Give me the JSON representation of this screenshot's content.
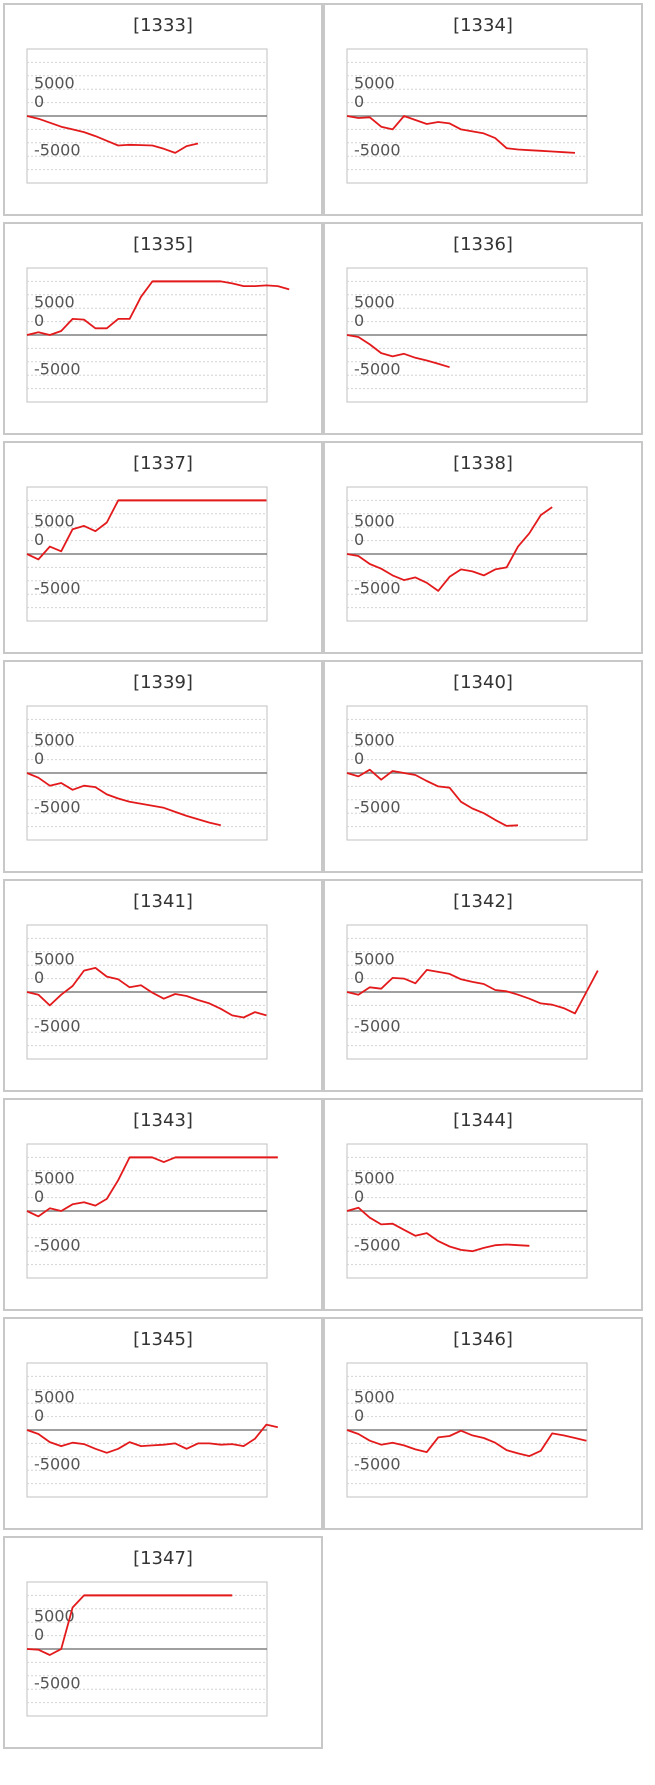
{
  "chart_data": [
    {
      "type": "line",
      "title": "[1333]",
      "yticks": [
        "5000",
        "0",
        "-5000"
      ],
      "ylim": [
        -10000,
        10000
      ],
      "clip": 8000,
      "line_color": "#e31a1c",
      "values": [
        0,
        -400,
        -1000,
        -1600,
        -2000,
        -2400,
        -3000,
        -3700,
        -4400,
        -4300,
        -4350,
        -4400,
        -4900,
        -5500,
        -4500,
        -4100
      ]
    },
    {
      "type": "line",
      "title": "[1334]",
      "yticks": [
        "5000",
        "0",
        "-5000"
      ],
      "ylim": [
        -10000,
        10000
      ],
      "clip": 8000,
      "line_color": "#e31a1c",
      "values": [
        0,
        -300,
        -200,
        -1600,
        -2000,
        0,
        -600,
        -1200,
        -900,
        -1100,
        -2000,
        -2300,
        -2600,
        -3300,
        -4800,
        -5000,
        -5100,
        -5200,
        -5300,
        -5400,
        -5500
      ]
    },
    {
      "type": "line",
      "title": "[1335]",
      "yticks": [
        "5000",
        "0",
        "-5000"
      ],
      "ylim": [
        -10000,
        10000
      ],
      "clip": 8000,
      "line_color": "#e31a1c",
      "values": [
        0,
        400,
        0,
        600,
        2400,
        2300,
        1000,
        1000,
        2400,
        2400,
        5700,
        8000,
        8000,
        8000,
        8000,
        8000,
        8000,
        8000,
        7700,
        7300,
        7300,
        7400,
        7300,
        6800
      ]
    },
    {
      "type": "line",
      "title": "[1336]",
      "yticks": [
        "5000",
        "0",
        "-5000"
      ],
      "ylim": [
        -10000,
        10000
      ],
      "clip": 8000,
      "line_color": "#e31a1c",
      "values": [
        0,
        -300,
        -1400,
        -2700,
        -3200,
        -2800,
        -3400,
        -3800,
        -4300,
        -4800
      ]
    },
    {
      "type": "line",
      "title": "[1337]",
      "yticks": [
        "5000",
        "0",
        "-5000"
      ],
      "ylim": [
        -10000,
        10000
      ],
      "clip": 8000,
      "line_color": "#e31a1c",
      "values": [
        0,
        -800,
        1100,
        400,
        3700,
        4200,
        3400,
        4700,
        8000,
        8000,
        8000,
        8000,
        8000,
        8000,
        8000,
        8000,
        8000,
        8000,
        8000,
        8000,
        8000,
        8000
      ]
    },
    {
      "type": "line",
      "title": "[1338]",
      "yticks": [
        "5000",
        "0",
        "-5000"
      ],
      "ylim": [
        -10000,
        10000
      ],
      "clip": 8000,
      "line_color": "#e31a1c",
      "values": [
        0,
        -300,
        -1500,
        -2200,
        -3200,
        -3900,
        -3500,
        -4300,
        -5500,
        -3400,
        -2300,
        -2600,
        -3200,
        -2300,
        -2000,
        1100,
        3100,
        5800,
        7000
      ]
    },
    {
      "type": "line",
      "title": "[1339]",
      "yticks": [
        "5000",
        "0",
        "-5000"
      ],
      "ylim": [
        -10000,
        10000
      ],
      "clip": 8000,
      "line_color": "#e31a1c",
      "values": [
        0,
        -700,
        -1900,
        -1500,
        -2500,
        -1900,
        -2100,
        -3200,
        -3800,
        -4300,
        -4600,
        -4900,
        -5200,
        -5800,
        -6400,
        -6900,
        -7400,
        -7800
      ]
    },
    {
      "type": "line",
      "title": "[1340]",
      "yticks": [
        "5000",
        "0",
        "-5000"
      ],
      "ylim": [
        -10000,
        10000
      ],
      "clip": 8000,
      "line_color": "#e31a1c",
      "values": [
        0,
        -500,
        500,
        -1000,
        300,
        0,
        -300,
        -1200,
        -2000,
        -2200,
        -4300,
        -5300,
        -6000,
        -7000,
        -7900,
        -7800
      ]
    },
    {
      "type": "line",
      "title": "[1341]",
      "yticks": [
        "5000",
        "0",
        "-5000"
      ],
      "ylim": [
        -10000,
        10000
      ],
      "clip": 8000,
      "line_color": "#e31a1c",
      "values": [
        0,
        -400,
        -2000,
        -400,
        900,
        3200,
        3600,
        2300,
        1900,
        700,
        1000,
        -100,
        -1000,
        -300,
        -600,
        -1200,
        -1700,
        -2500,
        -3500,
        -3800,
        -3000,
        -3500
      ]
    },
    {
      "type": "line",
      "title": "[1342]",
      "yticks": [
        "5000",
        "0",
        "-5000"
      ],
      "ylim": [
        -10000,
        10000
      ],
      "clip": 8000,
      "line_color": "#e31a1c",
      "values": [
        0,
        -400,
        700,
        500,
        2100,
        2000,
        1300,
        3300,
        3000,
        2700,
        1900,
        1500,
        1200,
        300,
        100,
        -400,
        -1000,
        -1700,
        -1900,
        -2400,
        -3200,
        0,
        3200
      ]
    },
    {
      "type": "line",
      "title": "[1343]",
      "yticks": [
        "5000",
        "0",
        "-5000"
      ],
      "ylim": [
        -10000,
        10000
      ],
      "clip": 8000,
      "line_color": "#e31a1c",
      "values": [
        0,
        -800,
        400,
        0,
        1000,
        1300,
        800,
        1800,
        4600,
        8000,
        8000,
        8000,
        7300,
        8000,
        8000,
        8000,
        8000,
        8000,
        8000,
        8000,
        8000,
        8000,
        8000
      ]
    },
    {
      "type": "line",
      "title": "[1344]",
      "yticks": [
        "5000",
        "0",
        "-5000"
      ],
      "ylim": [
        -10000,
        10000
      ],
      "clip": 8000,
      "line_color": "#e31a1c",
      "values": [
        0,
        500,
        -1000,
        -2000,
        -1900,
        -2800,
        -3700,
        -3300,
        -4500,
        -5300,
        -5800,
        -6000,
        -5500,
        -5100,
        -5000,
        -5100,
        -5200
      ]
    },
    {
      "type": "line",
      "title": "[1345]",
      "yticks": [
        "5000",
        "0",
        "-5000"
      ],
      "ylim": [
        -10000,
        10000
      ],
      "clip": 8000,
      "line_color": "#e31a1c",
      "values": [
        0,
        -600,
        -1800,
        -2400,
        -1900,
        -2100,
        -2800,
        -3400,
        -2800,
        -1800,
        -2400,
        -2300,
        -2200,
        -2000,
        -2800,
        -2000,
        -2000,
        -2200,
        -2100,
        -2400,
        -1300,
        800,
        400
      ]
    },
    {
      "type": "line",
      "title": "[1346]",
      "yticks": [
        "5000",
        "0",
        "-5000"
      ],
      "ylim": [
        -10000,
        10000
      ],
      "clip": 8000,
      "line_color": "#e31a1c",
      "values": [
        0,
        -600,
        -1600,
        -2200,
        -1900,
        -2300,
        -2900,
        -3300,
        -1100,
        -900,
        -100,
        -800,
        -1200,
        -1900,
        -3000,
        -3500,
        -3900,
        -3100,
        -500,
        -800,
        -1200,
        -1600
      ]
    },
    {
      "type": "line",
      "title": "[1347]",
      "yticks": [
        "5000",
        "0",
        "-5000"
      ],
      "ylim": [
        -10000,
        10000
      ],
      "clip": 8000,
      "line_color": "#e31a1c",
      "values": [
        0,
        -100,
        -900,
        0,
        6200,
        8000,
        8000,
        8000,
        8000,
        8000,
        8000,
        8000,
        8000,
        8000,
        8000,
        8000,
        8000,
        8000,
        8000
      ]
    }
  ]
}
